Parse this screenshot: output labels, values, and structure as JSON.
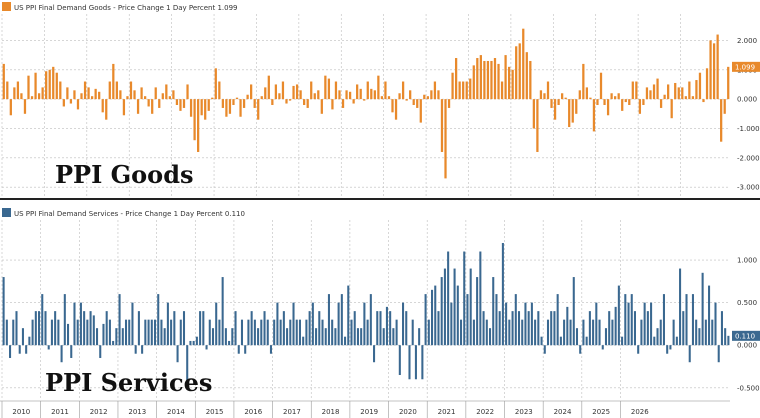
{
  "chart_data": [
    {
      "type": "bar",
      "legend": "US PPI Final Demand Goods - Price Change 1 Day Percent 1.099",
      "overlay_label": "PPI Goods",
      "color": "#e8892b",
      "last_value_label": "1.099",
      "yticks": [
        "2.000",
        "1.000",
        "0.000",
        "-1.000",
        "-2.000",
        "-3.000"
      ],
      "ylim": [
        -3.3,
        2.9
      ],
      "x": {
        "start": 2010,
        "step_months": 1
      },
      "values": [
        1.2,
        0.6,
        -0.55,
        0.4,
        0.6,
        0.2,
        -0.5,
        0.8,
        0.1,
        0.9,
        0.2,
        0.4,
        0.95,
        1.0,
        1.1,
        0.9,
        0.6,
        -0.25,
        0.4,
        -0.15,
        0.3,
        -0.35,
        0.2,
        0.6,
        0.4,
        0.1,
        0.35,
        0.25,
        -0.45,
        -0.7,
        0.6,
        1.2,
        0.6,
        0.3,
        -0.55,
        0.1,
        0.6,
        0.3,
        -0.5,
        0.4,
        0.1,
        -0.25,
        -0.5,
        0.4,
        -0.3,
        0.2,
        0.5,
        0.1,
        0.3,
        -0.2,
        -0.4,
        -0.3,
        0.5,
        -0.6,
        -1.4,
        -1.8,
        -0.55,
        -0.7,
        -0.4,
        0.05,
        1.05,
        0.6,
        -0.3,
        -0.6,
        -0.5,
        -0.2,
        0.05,
        -0.6,
        -0.3,
        0.15,
        0.5,
        -0.3,
        -0.7,
        0.1,
        0.4,
        0.8,
        -0.2,
        0.5,
        0.2,
        0.6,
        -0.15,
        -0.05,
        0.45,
        0.5,
        0.3,
        -0.2,
        -0.3,
        0.6,
        0.2,
        0.3,
        -0.5,
        0.8,
        0.7,
        -0.35,
        0.6,
        0.3,
        -0.3,
        0.3,
        0.25,
        -0.15,
        0.5,
        0.35,
        -0.05,
        0.6,
        0.35,
        0.3,
        0.8,
        0.1,
        0.6,
        0.1,
        -0.45,
        -0.7,
        0.2,
        0.6,
        -0.05,
        0.3,
        -0.2,
        -0.3,
        -0.8,
        0.15,
        0.1,
        0.3,
        0.6,
        0.3,
        -1.8,
        -2.7,
        -0.3,
        0.9,
        1.4,
        0.6,
        0.6,
        0.6,
        0.7,
        1.15,
        1.4,
        1.5,
        1.3,
        1.3,
        1.3,
        1.4,
        1.2,
        0.6,
        1.5,
        1.1,
        1.0,
        1.8,
        1.9,
        2.4,
        1.6,
        1.3,
        -1.0,
        -1.8,
        0.3,
        0.2,
        0.6,
        -0.3,
        -0.7,
        -0.2,
        0.2,
        0.05,
        -0.95,
        -0.8,
        -0.5,
        0.3,
        1.2,
        0.4,
        0.05,
        -1.1,
        -0.2,
        0.9,
        -0.2,
        -0.55,
        0.2,
        0.1,
        0.2,
        -0.4,
        -0.1,
        -0.2,
        0.6,
        0.6,
        -0.5,
        -0.2,
        0.4,
        0.3,
        0.5,
        0.7,
        -0.3,
        0.15,
        0.5,
        -0.65,
        0.55,
        0.4,
        0.4,
        0.1,
        0.6,
        0.1,
        0.65,
        0.9,
        -0.1,
        1.05,
        2.0,
        1.9,
        2.2,
        -1.45,
        -0.5,
        1.1
      ],
      "xticks": [
        "2010",
        "2011",
        "2012",
        "2013",
        "2014",
        "2015",
        "2016",
        "2017",
        "2018",
        "2019",
        "2020",
        "2021",
        "2022",
        "2023",
        "2024",
        "2025",
        "2026"
      ]
    },
    {
      "type": "bar",
      "legend": "US PPI Final Demand Services - Price Change 1 Day Percent 0.110",
      "overlay_label": "PPI Services",
      "color": "#3a6890",
      "last_value_label": "0.110",
      "yticks": [
        "1.000",
        "0.500",
        "0.000",
        "-0.500"
      ],
      "ylim": [
        -0.62,
        1.47
      ],
      "x": {
        "start": 2010,
        "step_months": 1
      },
      "values": [
        0.8,
        0.3,
        -0.15,
        0.3,
        0.4,
        -0.1,
        0.2,
        -0.1,
        0.1,
        0.3,
        0.4,
        0.4,
        0.6,
        0.4,
        -0.05,
        0.3,
        0.4,
        0.3,
        -0.2,
        0.6,
        0.25,
        -0.15,
        0.5,
        0.3,
        0.5,
        0.4,
        0.3,
        0.4,
        0.35,
        0.2,
        -0.15,
        0.25,
        0.4,
        0.3,
        0.05,
        0.2,
        0.6,
        0.2,
        0.3,
        0.3,
        0.5,
        -0.1,
        0.4,
        -0.1,
        0.3,
        0.3,
        0.3,
        0.3,
        0.6,
        0.3,
        0.2,
        0.5,
        0.3,
        0.4,
        -0.2,
        0.3,
        0.4,
        -0.5,
        0.05,
        0.05,
        0.1,
        0.4,
        0.4,
        -0.05,
        0.3,
        0.2,
        0.5,
        0.3,
        0.8,
        0.2,
        0.05,
        0.2,
        0.4,
        -0.1,
        0.3,
        -0.1,
        0.3,
        0.4,
        0.3,
        0.2,
        0.3,
        0.4,
        0.3,
        -0.1,
        0.3,
        0.5,
        0.3,
        0.4,
        0.2,
        0.3,
        0.5,
        0.3,
        0.3,
        0.1,
        0.3,
        0.4,
        0.5,
        0.2,
        0.4,
        0.3,
        0.2,
        0.6,
        0.3,
        0.2,
        0.5,
        0.6,
        0.1,
        0.7,
        0.3,
        0.4,
        0.2,
        0.2,
        0.5,
        0.3,
        0.6,
        -0.2,
        0.4,
        0.4,
        0.2,
        0.45,
        0.4,
        0.2,
        0.3,
        -0.35,
        0.5,
        0.4,
        -0.4,
        0.3,
        -0.4,
        0.2,
        -0.4,
        0.6,
        0.3,
        0.65,
        0.7,
        0.4,
        0.8,
        0.9,
        1.1,
        0.5,
        0.9,
        0.7,
        0.3,
        1.1,
        0.6,
        0.9,
        0.3,
        0.8,
        1.1,
        0.4,
        0.3,
        0.2,
        0.8,
        0.6,
        0.4,
        1.2,
        0.5,
        0.3,
        0.4,
        0.6,
        0.4,
        0.3,
        0.5,
        0.4,
        0.5,
        0.3,
        0.4,
        0.1,
        -0.1,
        0.3,
        0.4,
        0.4,
        0.6,
        0.1,
        0.3,
        0.45,
        0.3,
        0.8,
        0.2,
        -0.1,
        0.3,
        0.1,
        0.4,
        0.3,
        0.5,
        0.3,
        -0.05,
        0.2,
        0.4,
        0.3,
        0.45,
        0.7,
        0.1,
        0.6,
        0.5,
        0.6,
        0.4,
        -0.1,
        0.3,
        0.5,
        0.4,
        0.5,
        0.1,
        0.2,
        0.3,
        0.6,
        -0.1,
        -0.05,
        0.3,
        0.1,
        0.9,
        0.4,
        0.6,
        -0.2,
        0.6,
        0.3,
        0.2,
        0.85,
        0.3,
        0.7,
        0.3,
        0.5,
        -0.2,
        0.4,
        0.2,
        0.11
      ],
      "xticks": [
        "2010",
        "2011",
        "2012",
        "2013",
        "2014",
        "2015",
        "2016",
        "2017",
        "2018",
        "2019",
        "2020",
        "2021",
        "2022",
        "2023",
        "2024",
        "2025",
        "2026"
      ]
    }
  ]
}
